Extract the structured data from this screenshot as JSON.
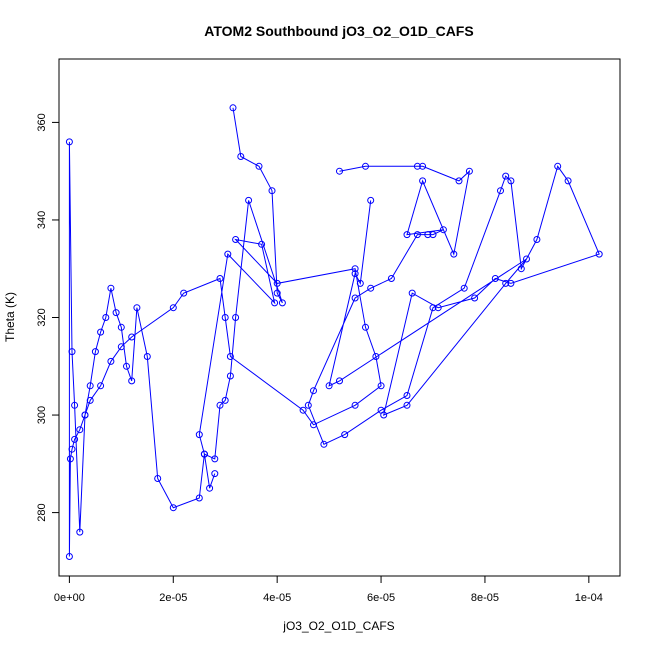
{
  "chart_data": {
    "type": "scatter",
    "title": "ATOM2 Southbound jO3_O2_O1D_CAFS",
    "xlabel": "jO3_O2_O1D_CAFS",
    "ylabel": "Theta (K)",
    "xlim": [
      -2e-06,
      0.000106
    ],
    "ylim": [
      267,
      373
    ],
    "grid": false,
    "legend": "none",
    "x_ticks": [
      0,
      2e-05,
      4e-05,
      6e-05,
      8e-05,
      0.0001
    ],
    "x_tick_labels": [
      "0e+00",
      "2e-05",
      "4e-05",
      "6e-05",
      "8e-05",
      "1e-04"
    ],
    "y_ticks": [
      280,
      300,
      320,
      340,
      360
    ],
    "y_tick_labels": [
      "280",
      "300",
      "320",
      "340",
      "360"
    ],
    "color": "#0000ff",
    "series": [
      {
        "marker": "open-circle",
        "line": true,
        "x": [
          3.15e-05,
          3.3e-05,
          3.65e-05,
          3.9e-05,
          4e-05,
          4.1e-05,
          3.45e-05,
          3.2e-05,
          3.1e-05,
          3e-05,
          2.9e-05,
          2.8e-05,
          2.6e-05,
          2.5e-05,
          3.05e-05,
          3.95e-05,
          3.7e-05,
          3.2e-05,
          4e-05,
          5.5e-05,
          5.7e-05,
          5.9e-05,
          6e-05,
          5.5e-05,
          4.7e-05,
          4.5e-05,
          3.1e-05,
          3e-05,
          2.9e-05,
          2.2e-05,
          2e-05,
          1.2e-05,
          1e-05,
          8e-06,
          6e-06,
          4e-06,
          3e-06,
          2e-06,
          1e-06,
          5e-07,
          2e-07,
          0.0,
          0.0,
          5e-07,
          1e-06,
          2e-06,
          3e-06,
          4e-06,
          5e-06,
          6e-06,
          7e-06,
          8e-06,
          9e-06,
          1e-05,
          1.1e-05,
          1.2e-05,
          1.3e-05,
          1.5e-05,
          1.7e-05,
          2e-05,
          2.5e-05,
          2.6e-05,
          2.7e-05,
          2.8e-05
        ],
        "y": [
          363,
          353,
          351,
          346,
          325,
          323,
          344,
          320,
          308,
          303,
          302,
          291,
          292,
          296,
          333,
          323,
          335,
          336,
          327,
          330,
          318,
          312,
          306,
          302,
          298,
          301,
          312,
          320,
          328,
          325,
          322,
          316,
          314,
          311,
          306,
          303,
          300,
          297,
          295,
          293,
          291,
          271,
          356,
          313,
          302,
          276,
          300,
          306,
          313,
          317,
          320,
          326,
          321,
          318,
          310,
          307,
          322,
          312,
          287,
          281,
          283,
          292,
          285,
          288
        ]
      },
      {
        "marker": "open-circle",
        "line": true,
        "x": [
          5.2e-05,
          5.7e-05,
          6.7e-05,
          6.8e-05,
          7.5e-05,
          7.7e-05,
          7.4e-05,
          6.8e-05,
          6.5e-05,
          7.2e-05,
          7e-05,
          6.9e-05,
          6.7e-05,
          6.2e-05,
          5.8e-05,
          5.5e-05,
          4.7e-05,
          4.6e-05,
          4.9e-05,
          5.3e-05,
          6e-05,
          6.5e-05,
          7e-05,
          7.6e-05,
          8.3e-05,
          8.4e-05,
          8.5e-05,
          8.7e-05,
          9e-05,
          9.4e-05,
          9.6e-05,
          0.000102,
          8.5e-05,
          8.2e-05,
          7.8e-05,
          7.1e-05,
          6.6e-05,
          6.05e-05,
          6.5e-05,
          8.4e-05,
          8.8e-05,
          5.2e-05,
          5e-05,
          5.5e-05,
          5.6e-05,
          5.8e-05
        ],
        "y": [
          350,
          351,
          351,
          351,
          348,
          350,
          333,
          348,
          337,
          338,
          337,
          337,
          337,
          328,
          326,
          324,
          305,
          302,
          294,
          296,
          301,
          304,
          322,
          326,
          346,
          349,
          348,
          330,
          336,
          351,
          348,
          333,
          327,
          328,
          324,
          322,
          325,
          300,
          302,
          327,
          332,
          307,
          306,
          329,
          327,
          344
        ]
      }
    ]
  }
}
